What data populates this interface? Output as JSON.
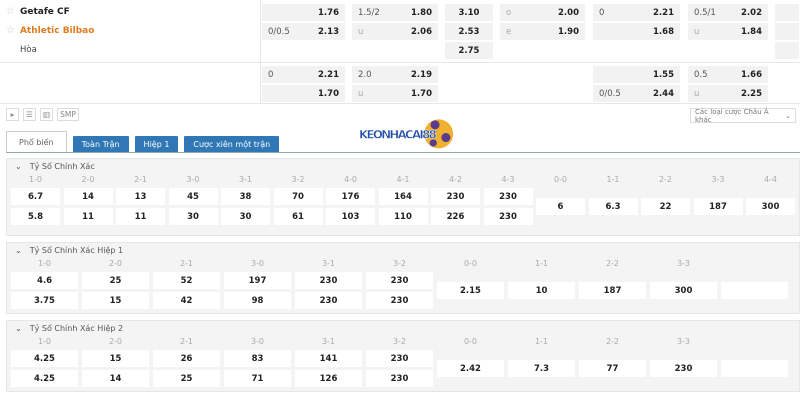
{
  "match": {
    "home": "Getafe CF",
    "away": "Athletic Bilbao",
    "draw": "Hòa",
    "home_color": "#222222",
    "away_color": "#e07b1f"
  },
  "odds_rows": [
    [
      {
        "l": "",
        "v": "1.76"
      },
      {
        "l": "1.5/2",
        "v": "1.80"
      },
      {
        "l": "",
        "v": "3.10"
      },
      {
        "l": "o",
        "v": "2.00"
      },
      {
        "l": "0",
        "v": "2.21"
      },
      {
        "l": "0.5/1",
        "v": "2.02"
      },
      {
        "l": "",
        "v": ""
      }
    ],
    [
      {
        "l": "0/0.5",
        "v": "2.13"
      },
      {
        "l": "u",
        "v": "2.06"
      },
      {
        "l": "",
        "v": "2.53"
      },
      {
        "l": "e",
        "v": "1.90"
      },
      {
        "l": "",
        "v": "1.68"
      },
      {
        "l": "u",
        "v": "1.84"
      },
      {
        "l": "",
        "v": ""
      }
    ],
    [
      null,
      null,
      {
        "l": "",
        "v": "2.75"
      },
      null,
      null,
      null,
      {
        "l": "",
        "v": ""
      }
    ],
    [
      {
        "l": "0",
        "v": "2.21"
      },
      {
        "l": "2.0",
        "v": "2.19"
      },
      null,
      null,
      {
        "l": "",
        "v": "1.55"
      },
      {
        "l": "0.5",
        "v": "1.66"
      },
      null
    ],
    [
      {
        "l": "",
        "v": "1.70"
      },
      {
        "l": "u",
        "v": "1.70"
      },
      null,
      null,
      {
        "l": "0/0.5",
        "v": "2.44"
      },
      {
        "l": "u",
        "v": "2.25"
      },
      null
    ]
  ],
  "toolbar": {
    "play_icon": "play-icon",
    "list_icon": "list-icon",
    "stats_icon": "bar-chart-icon",
    "smp": "SMP"
  },
  "dropdown": {
    "label": "Các loại cược Châu Á khác"
  },
  "tabs": [
    {
      "label": "Phổ biến",
      "active": true
    },
    {
      "label": "Toàn Trận"
    },
    {
      "label": "Hiệp 1"
    },
    {
      "label": "Cược xiên một trận"
    }
  ],
  "logo": {
    "text": "KEONHACAI88"
  },
  "sections": [
    {
      "title": "Tỷ Số Chính Xác",
      "scores": [
        "1-0",
        "2-0",
        "2-1",
        "3-0",
        "3-1",
        "3-2",
        "4-0",
        "4-1",
        "4-2",
        "4-3"
      ],
      "home": [
        "6.7",
        "14",
        "13",
        "45",
        "38",
        "70",
        "176",
        "164",
        "230",
        "230"
      ],
      "away": [
        "5.8",
        "11",
        "11",
        "30",
        "30",
        "61",
        "103",
        "110",
        "226",
        "230"
      ],
      "draw_scores": [
        "0-0",
        "1-1",
        "2-2",
        "3-3",
        "4-4"
      ],
      "draw": [
        "6",
        "6.3",
        "22",
        "187",
        "300"
      ]
    },
    {
      "title": "Tỷ Số Chính Xác Hiệp 1",
      "scores": [
        "1-0",
        "2-0",
        "2-1",
        "3-0",
        "3-1",
        "3-2"
      ],
      "home": [
        "4.6",
        "25",
        "52",
        "197",
        "230",
        "230"
      ],
      "away": [
        "3.75",
        "15",
        "42",
        "98",
        "230",
        "230"
      ],
      "draw_scores": [
        "0-0",
        "1-1",
        "2-2",
        "3-3",
        ""
      ],
      "draw": [
        "2.15",
        "10",
        "187",
        "300",
        ""
      ]
    },
    {
      "title": "Tỷ Số Chính Xác Hiệp 2",
      "scores": [
        "1-0",
        "2-0",
        "2-1",
        "3-0",
        "3-1",
        "3-2"
      ],
      "home": [
        "4.25",
        "15",
        "26",
        "83",
        "141",
        "230"
      ],
      "away": [
        "4.25",
        "14",
        "25",
        "71",
        "126",
        "230"
      ],
      "draw_scores": [
        "0-0",
        "1-1",
        "2-2",
        "3-3",
        ""
      ],
      "draw": [
        "2.42",
        "7.3",
        "77",
        "230",
        ""
      ]
    }
  ]
}
